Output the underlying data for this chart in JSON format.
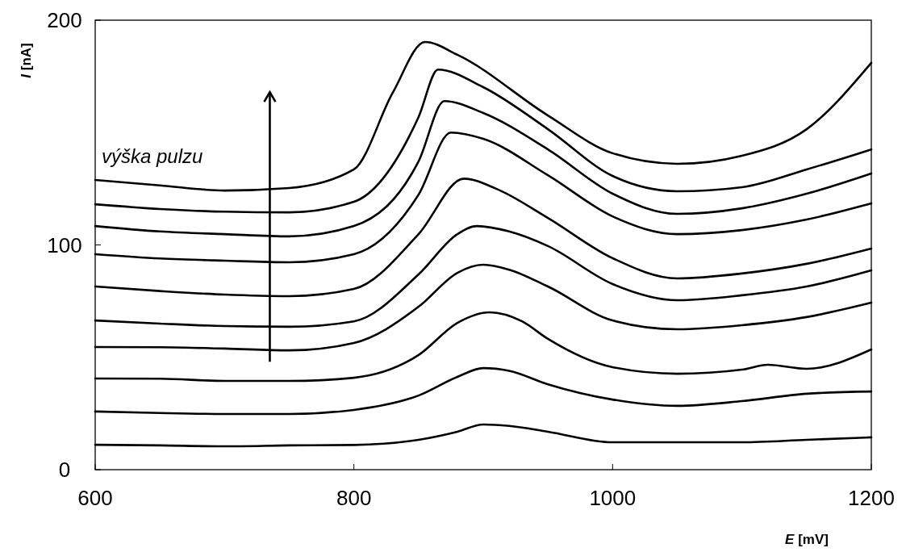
{
  "chart_data": {
    "type": "line",
    "xlabel": "E [mV]",
    "ylabel": "I [nA]",
    "xlim": [
      600,
      1200
    ],
    "ylim": [
      0,
      200
    ],
    "xticks": [
      600,
      800,
      1000,
      1200
    ],
    "yticks": [
      0,
      100,
      200
    ],
    "grid": false,
    "marker": "none",
    "line_style": "solid",
    "annotations": [
      "výška pulzu"
    ],
    "series": [
      {
        "color": "#000000",
        "x": [
          600,
          650,
          700,
          750,
          800,
          850,
          880,
          900,
          920,
          950,
          1000,
          1050,
          1100,
          1150,
          1200
        ],
        "values": [
          11.1,
          10.8,
          10.4,
          10.8,
          11,
          13.3,
          16.9,
          20.1,
          19.5,
          16.9,
          12.2,
          12.2,
          12.2,
          13.3,
          14.4
        ]
      },
      {
        "color": "#000000",
        "x": [
          600,
          650,
          700,
          750,
          800,
          850,
          880,
          900,
          920,
          950,
          1000,
          1050,
          1100,
          1150,
          1200
        ],
        "values": [
          25.9,
          25.2,
          24.8,
          24.8,
          26.6,
          33,
          41.3,
          45.2,
          44,
          38,
          31.2,
          28.4,
          30.5,
          33.8,
          34.8
        ]
      },
      {
        "color": "#000000",
        "x": [
          600,
          650,
          700,
          750,
          800,
          850,
          880,
          905,
          930,
          950,
          1000,
          1050,
          1100,
          1120,
          1150,
          1200
        ],
        "values": [
          40.6,
          40.5,
          39.5,
          39.5,
          40.9,
          51,
          65.3,
          70,
          66,
          58.2,
          45.6,
          42.7,
          44.5,
          46.7,
          44.9,
          53.5
        ]
      },
      {
        "color": "#000000",
        "x": [
          600,
          650,
          700,
          750,
          800,
          850,
          880,
          900,
          920,
          950,
          1000,
          1050,
          1100,
          1150,
          1200
        ],
        "values": [
          54.6,
          54.5,
          53.9,
          53.1,
          56.4,
          72.5,
          87.6,
          91.2,
          89,
          81.5,
          66.4,
          62.5,
          64.3,
          67.9,
          74.3
        ]
      },
      {
        "color": "#000000",
        "x": [
          600,
          650,
          700,
          750,
          800,
          850,
          880,
          895,
          920,
          950,
          1000,
          1050,
          1100,
          1150,
          1200
        ],
        "values": [
          66.4,
          65,
          63.9,
          63.6,
          66,
          86.9,
          104.8,
          108.4,
          106,
          99.5,
          82.6,
          75.4,
          77.6,
          81.5,
          88.7
        ]
      },
      {
        "color": "#000000",
        "x": [
          600,
          650,
          700,
          750,
          800,
          850,
          885,
          910,
          950,
          1000,
          1050,
          1100,
          1150,
          1200
        ],
        "values": [
          81.5,
          79.5,
          77.9,
          77.2,
          80.4,
          104.8,
          129.5,
          125,
          112,
          94.1,
          85.1,
          87.3,
          91.6,
          98.4
        ]
      },
      {
        "color": "#000000",
        "x": [
          600,
          650,
          700,
          750,
          800,
          850,
          875,
          900,
          950,
          1000,
          1050,
          1100,
          1150,
          1200
        ],
        "values": [
          95.9,
          94,
          93,
          92.3,
          95.9,
          122.4,
          150,
          147.2,
          131,
          112.7,
          104.8,
          106.6,
          111.3,
          118.5
        ]
      },
      {
        "color": "#000000",
        "x": [
          600,
          650,
          700,
          750,
          800,
          850,
          870,
          900,
          950,
          1000,
          1050,
          1100,
          1150,
          1200
        ],
        "values": [
          108.4,
          106,
          104.8,
          103.8,
          108.4,
          137.2,
          164,
          158.7,
          142.5,
          122.8,
          113.8,
          116.3,
          122.8,
          131.8
        ]
      },
      {
        "color": "#000000",
        "x": [
          600,
          650,
          700,
          750,
          800,
          850,
          865,
          900,
          950,
          1000,
          1050,
          1100,
          1150,
          1200
        ],
        "values": [
          118.1,
          116,
          114.8,
          114.5,
          119.2,
          156.9,
          178,
          170.2,
          151.5,
          130.7,
          123.9,
          125.7,
          133.6,
          142.5
        ]
      },
      {
        "color": "#000000",
        "x": [
          600,
          650,
          700,
          750,
          800,
          830,
          855,
          880,
          950,
          1000,
          1050,
          1100,
          1150,
          1200
        ],
        "values": [
          128.9,
          126.5,
          124.2,
          125.3,
          133.6,
          167.7,
          190.3,
          184.6,
          157.6,
          140.8,
          136.1,
          139.7,
          151.5,
          181
        ]
      }
    ]
  }
}
